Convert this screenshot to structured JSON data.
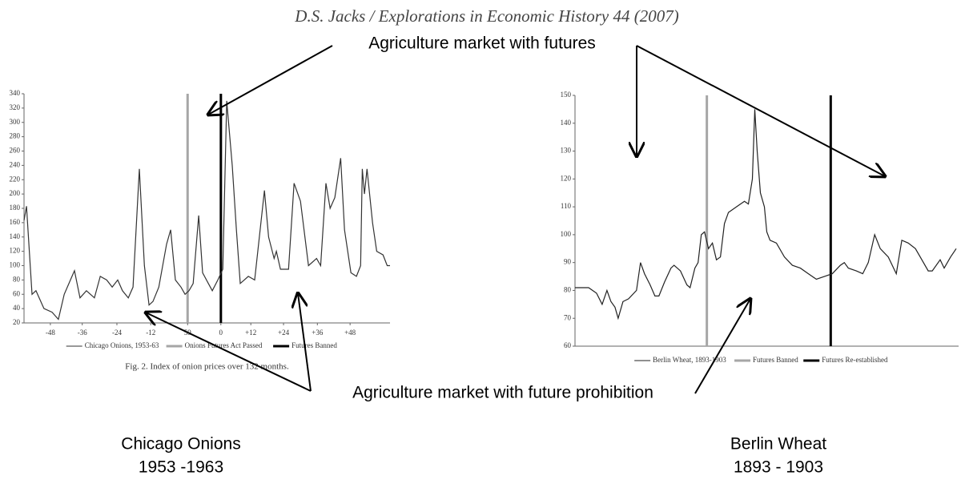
{
  "header": "D.S. Jacks / Explorations in Economic History 44 (2007)",
  "annotations": [
    "Agriculture market with futures",
    "Agriculture market with future prohibition"
  ],
  "captions": [
    {
      "title": "Chicago Onions",
      "period": "1953 -1963"
    },
    {
      "title": "Berlin Wheat",
      "period": "1893 - 1903"
    }
  ],
  "chart_data": [
    {
      "type": "line",
      "caption": "Fig. 2. Index of onion prices over 132 months.",
      "xlim": [
        0,
        132
      ],
      "ylim": [
        20,
        340
      ],
      "xticks": [
        {
          "value": 9.5,
          "label": "-48"
        },
        {
          "value": 21,
          "label": "-36"
        },
        {
          "value": 33.5,
          "label": "-24"
        },
        {
          "value": 45.7,
          "label": "-12"
        },
        59,
        {
          "value": 71,
          "label": "0"
        },
        {
          "value": 81.8,
          "label": "+12"
        },
        {
          "value": 93.6,
          "label": "+24"
        },
        {
          "value": 105.8,
          "label": "+36"
        },
        {
          "value": 117.6,
          "label": "+48"
        }
      ],
      "yticks": [
        20,
        40,
        60,
        80,
        100,
        120,
        140,
        160,
        180,
        200,
        220,
        240,
        260,
        280,
        300,
        320,
        340
      ],
      "series": [
        {
          "name": "Chicago Onions, 1953-63",
          "color": "#333333",
          "x": [
            0,
            0.9,
            2.9,
            4.3,
            7.2,
            10.1,
            12.4,
            14.5,
            17.3,
            18.2,
            20.2,
            22.5,
            25.4,
            27.5,
            29.8,
            31.8,
            33.8,
            35.5,
            37.6,
            39.3,
            41.6,
            43.4,
            45.1,
            46.5,
            48.6,
            51.4,
            52.9,
            54.6,
            56.6,
            58.1,
            59.5,
            61.0,
            63.0,
            64.4,
            66.5,
            67.9,
            69.9,
            71.7,
            73.1,
            75.1,
            76.6,
            78.0,
            80.9,
            83.2,
            86.7,
            88.2,
            90.2,
            91.0,
            92.5,
            95.4,
            97.4,
            99.7,
            102.6,
            105.5,
            107.0,
            108.9,
            110.4,
            112.1,
            114.2,
            115.6,
            117.9,
            119.9,
            121.4,
            122.0,
            122.8,
            123.7,
            125.7,
            127.2,
            129.5,
            131.0,
            132
          ],
          "values": [
            163,
            183,
            60,
            65,
            40,
            35,
            25,
            60,
            85,
            93,
            55,
            65,
            55,
            85,
            80,
            70,
            80,
            65,
            55,
            70,
            235,
            100,
            45,
            50,
            70,
            130,
            150,
            80,
            70,
            60,
            65,
            75,
            170,
            90,
            75,
            65,
            80,
            95,
            330,
            240,
            150,
            75,
            85,
            80,
            205,
            140,
            110,
            120,
            95,
            95,
            215,
            190,
            100,
            110,
            100,
            215,
            180,
            195,
            250,
            150,
            90,
            85,
            100,
            235,
            200,
            235,
            160,
            120,
            115,
            100,
            100
          ]
        }
      ],
      "markers": [
        {
          "name": "Onions Futures Act Passed",
          "color": "#a6a6a6",
          "x": 59
        },
        {
          "name": "Futures Banned",
          "color": "#000000",
          "x": 71
        }
      ]
    },
    {
      "type": "line",
      "xlim": [
        0,
        120
      ],
      "ylim": [
        60,
        150
      ],
      "yticks": [
        60,
        70,
        80,
        90,
        100,
        110,
        120,
        130,
        140,
        150
      ],
      "series": [
        {
          "name": "Berlin Wheat, 1893-1903",
          "color": "#222222",
          "x": [
            0,
            4.25,
            6.75,
            8.5,
            10,
            11.25,
            12.5,
            13.5,
            15,
            16.75,
            19.25,
            20.5,
            21.75,
            23.5,
            25,
            26.25,
            28,
            30,
            31,
            33,
            35,
            36,
            37.5,
            38.5,
            39.5,
            40.5,
            41.75,
            43,
            44.25,
            45.5,
            46.75,
            48,
            50.5,
            53,
            54.25,
            55.5,
            56.25,
            57,
            58,
            59.25,
            60,
            61,
            63,
            65.5,
            68,
            70.5,
            73,
            75.5,
            78,
            80.5,
            83,
            84.25,
            85.5,
            88,
            90,
            91.75,
            93.75,
            95.5,
            98,
            100.5,
            102.25,
            104.25,
            106.5,
            108,
            110.5,
            111.75,
            114.25,
            115.5,
            117.5,
            119.25
          ],
          "values": [
            81,
            81,
            79,
            75,
            80,
            76,
            74,
            70,
            76,
            77,
            80,
            90,
            86,
            82,
            78,
            78,
            83,
            88,
            89,
            87,
            82,
            81,
            88,
            90,
            100,
            101,
            95,
            97,
            91,
            92,
            104,
            108,
            110,
            112,
            111,
            120,
            145,
            130,
            115,
            110,
            101,
            98,
            97,
            92,
            89,
            88,
            86,
            84,
            85,
            86,
            89,
            90,
            88,
            87,
            86,
            90,
            100,
            95,
            92,
            86,
            98,
            97,
            95,
            92,
            87,
            87,
            91,
            88,
            92,
            95
          ]
        }
      ],
      "markers": [
        {
          "name": "Futures Banned",
          "color": "#a6a6a6",
          "x": 41.25
        },
        {
          "name": "Futures Re-established",
          "color": "#000000",
          "x": 80
        }
      ]
    }
  ]
}
